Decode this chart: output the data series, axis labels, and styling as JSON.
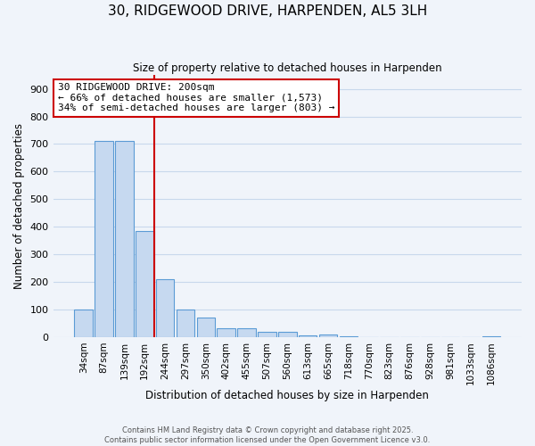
{
  "title": "30, RIDGEWOOD DRIVE, HARPENDEN, AL5 3LH",
  "subtitle": "Size of property relative to detached houses in Harpenden",
  "xlabel": "Distribution of detached houses by size in Harpenden",
  "ylabel": "Number of detached properties",
  "bar_labels": [
    "34sqm",
    "87sqm",
    "139sqm",
    "192sqm",
    "244sqm",
    "297sqm",
    "350sqm",
    "402sqm",
    "455sqm",
    "507sqm",
    "560sqm",
    "613sqm",
    "665sqm",
    "718sqm",
    "770sqm",
    "823sqm",
    "876sqm",
    "928sqm",
    "981sqm",
    "1033sqm",
    "1086sqm"
  ],
  "bar_values": [
    100,
    710,
    710,
    385,
    210,
    100,
    70,
    33,
    33,
    20,
    18,
    5,
    8,
    2,
    0,
    0,
    0,
    0,
    0,
    0,
    2
  ],
  "bar_color": "#c6d9f0",
  "bar_edge_color": "#5b9bd5",
  "property_line_color": "#cc0000",
  "ylim": [
    0,
    950
  ],
  "yticks": [
    0,
    100,
    200,
    300,
    400,
    500,
    600,
    700,
    800,
    900
  ],
  "annotation_line1": "30 RIDGEWOOD DRIVE: 200sqm",
  "annotation_line2": "← 66% of detached houses are smaller (1,573)",
  "annotation_line3": "34% of semi-detached houses are larger (803) →",
  "annotation_box_color": "#cc0000",
  "footer_line1": "Contains HM Land Registry data © Crown copyright and database right 2025.",
  "footer_line2": "Contains public sector information licensed under the Open Government Licence v3.0.",
  "background_color": "#f0f4fa",
  "grid_color": "#c8d8ec"
}
